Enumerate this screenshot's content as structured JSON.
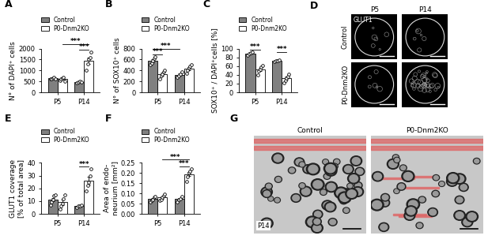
{
  "chart_data": [
    {
      "panel": "A",
      "type": "bar",
      "ylabel": "N° of DAPI⁺ cells",
      "categories": [
        "P5",
        "P14"
      ],
      "ylim": [
        0,
        2000
      ],
      "yticks": [
        0,
        500,
        1000,
        1500,
        2000
      ],
      "legend": "top",
      "series": [
        {
          "name": "Control",
          "color": "#808080",
          "values": [
            634,
            470
          ],
          "errors": [
            20,
            15
          ],
          "points": [
            [
              600,
              620,
              650,
              700,
              600
            ],
            [
              430,
              470,
              500,
              480
            ]
          ]
        },
        {
          "name": "P0-Dnm2KO",
          "color": "#ffffff",
          "values": [
            604,
            1450
          ],
          "errors": [
            35,
            150
          ],
          "points": [
            [
              550,
              600,
              650,
              700,
              520
            ],
            [
              1000,
              1300,
              1500,
              1600,
              1850
            ]
          ]
        }
      ],
      "annotations": [
        {
          "text": "***",
          "from": [
            1,
            0
          ],
          "to": [
            1,
            1
          ]
        },
        {
          "text": "***",
          "from": [
            0,
            1
          ],
          "to": [
            1,
            1
          ]
        }
      ]
    },
    {
      "panel": "B",
      "type": "bar",
      "ylabel": "N° of SOX10⁺ cells",
      "categories": [
        "P5",
        "P14"
      ],
      "ylim": [
        0,
        800
      ],
      "yticks": [
        0,
        200,
        400,
        600,
        800
      ],
      "legend": "top",
      "series": [
        {
          "name": "Control",
          "color": "#808080",
          "values": [
            578,
            320
          ],
          "errors": [
            27,
            20
          ],
          "points": [
            [
              500,
              540,
              580,
              620,
              650
            ],
            [
              280,
              300,
              330,
              370
            ]
          ]
        },
        {
          "name": "P0-Dnm2KO",
          "color": "#ffffff",
          "values": [
            332,
            436
          ],
          "errors": [
            28,
            27
          ],
          "points": [
            [
              250,
              300,
              330,
              380,
              400
            ],
            [
              350,
              400,
              450,
              480,
              500
            ]
          ]
        }
      ],
      "annotations": [
        {
          "text": "***",
          "from": [
            0,
            0
          ],
          "to": [
            0,
            1
          ]
        },
        {
          "text": "***",
          "from": [
            0,
            0
          ],
          "to": [
            1,
            0
          ]
        }
      ]
    },
    {
      "panel": "C",
      "type": "bar",
      "ylabel": "SOX10⁺ / DAPI⁺cells [%]",
      "categories": [
        "P5",
        "P14"
      ],
      "ylim": [
        0,
        100
      ],
      "yticks": [
        0,
        20,
        40,
        60,
        80,
        100
      ],
      "legend": "top",
      "series": [
        {
          "name": "Control",
          "color": "#808080",
          "values": [
            89,
            72
          ],
          "errors": [
            1.5,
            1
          ],
          "points": [
            [
              85,
              88,
              90,
              92
            ],
            [
              70,
              72,
              73,
              74
            ]
          ]
        },
        {
          "name": "P0-Dnm2KO",
          "color": "#ffffff",
          "values": [
            52,
            32
          ],
          "errors": [
            4,
            3.5
          ],
          "points": [
            [
              40,
              48,
              52,
              58,
              62
            ],
            [
              22,
              28,
              32,
              36,
              42
            ]
          ]
        }
      ],
      "annotations": [
        {
          "text": "***",
          "from": [
            0,
            0
          ],
          "to": [
            0,
            1
          ]
        },
        {
          "text": "***",
          "from": [
            1,
            0
          ],
          "to": [
            1,
            1
          ]
        }
      ]
    },
    {
      "panel": "E",
      "type": "bar",
      "ylabel": "GLUT1 coverage\n[% of total area]",
      "categories": [
        "P5",
        "P14"
      ],
      "ylim": [
        0,
        40
      ],
      "yticks": [
        0,
        10,
        20,
        30,
        40
      ],
      "legend": "top",
      "series": [
        {
          "name": "Control",
          "color": "#808080",
          "values": [
            11.2,
            6
          ],
          "errors": [
            1.5,
            0.5
          ],
          "points": [
            [
              7,
              9,
              11,
              14,
              15
            ],
            [
              5,
              6,
              6,
              7
            ]
          ]
        },
        {
          "name": "P0-Dnm2KO",
          "color": "#ffffff",
          "values": [
            9,
            26
          ],
          "errors": [
            2,
            3
          ],
          "points": [
            [
              4,
              6,
              8,
              12,
              15
            ],
            [
              18,
              22,
              25,
              30,
              35
            ]
          ]
        }
      ],
      "annotations": [
        {
          "text": "***",
          "from": [
            1,
            0
          ],
          "to": [
            1,
            1
          ]
        }
      ]
    },
    {
      "panel": "F",
      "type": "bar",
      "ylabel": "Area of endo-\nneurium [mm²]",
      "categories": [
        "P5",
        "P14"
      ],
      "ylim": [
        0,
        0.25
      ],
      "yticks": [
        {
          "value": 0,
          "label": "0.00"
        },
        {
          "value": 0.05,
          "label": "0.05"
        },
        {
          "value": 0.1,
          "label": "0.10"
        },
        {
          "value": 0.15,
          "label": "0.15"
        },
        {
          "value": 0.2,
          "label": "0.20"
        },
        {
          "value": 0.25,
          "label": "0.25"
        }
      ],
      "legend": "top",
      "series": [
        {
          "name": "Control",
          "color": "#808080",
          "values": [
            0.072,
            0.073
          ],
          "errors": [
            0.005,
            0.005
          ],
          "points": [
            [
              0.06,
              0.065,
              0.07,
              0.08,
              0.085
            ],
            [
              0.06,
              0.07,
              0.075,
              0.085
            ]
          ]
        },
        {
          "name": "P0-Dnm2KO",
          "color": "#ffffff",
          "values": [
            0.08,
            0.194
          ],
          "errors": [
            0.006,
            0.01
          ],
          "points": [
            [
              0.065,
              0.07,
              0.08,
              0.09,
              0.095
            ],
            [
              0.16,
              0.18,
              0.2,
              0.21,
              0.22
            ]
          ]
        }
      ],
      "annotations": [
        {
          "text": "***",
          "from": [
            1,
            0
          ],
          "to": [
            1,
            1
          ]
        },
        {
          "text": "***",
          "from": [
            0,
            1
          ],
          "to": [
            1,
            1
          ]
        }
      ]
    }
  ],
  "images": [
    {
      "panel": "D",
      "title": "GLUT1",
      "columns": [
        "P5",
        "P14"
      ],
      "rows": [
        "Control",
        "P0-Dnm2KO"
      ]
    },
    {
      "panel": "G",
      "label": "P14",
      "columns": [
        "Control",
        "P0-Dnm2KO"
      ]
    }
  ]
}
